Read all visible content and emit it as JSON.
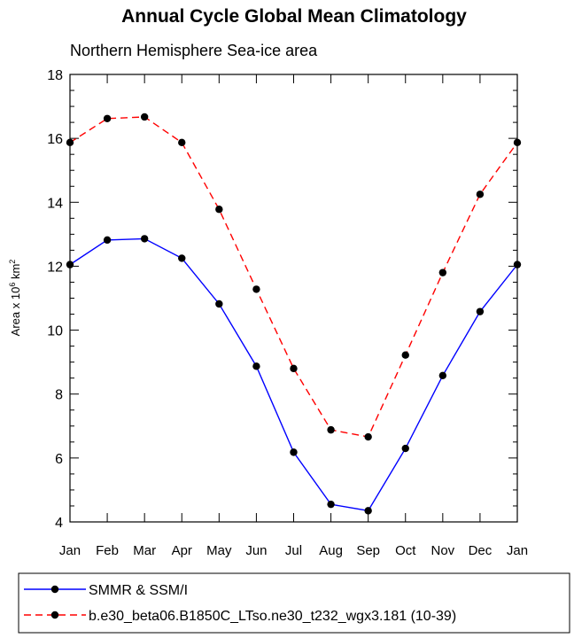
{
  "chart_data": {
    "type": "line",
    "title": "Annual Cycle Global Mean Climatology",
    "subtitle": "Northern Hemisphere Sea-ice area",
    "xlabel": "",
    "ylabel": {
      "prefix": "Area x 10",
      "exponent": "6",
      "unit_base": " km",
      "unit_exponent": "2"
    },
    "categories": [
      "Jan",
      "Feb",
      "Mar",
      "Apr",
      "May",
      "Jun",
      "Jul",
      "Aug",
      "Sep",
      "Oct",
      "Nov",
      "Dec",
      "Jan"
    ],
    "ylim": [
      4,
      18
    ],
    "yticks": [
      4,
      6,
      8,
      10,
      12,
      14,
      16,
      18
    ],
    "grid": false,
    "legend_placement": "bottom",
    "series": [
      {
        "name": "SMMR & SSM/I",
        "color": "#0000ff",
        "dash": "solid",
        "marker": "filled-circle",
        "values": [
          12.05,
          12.82,
          12.86,
          12.25,
          10.82,
          8.87,
          6.18,
          4.55,
          4.35,
          6.3,
          8.58,
          10.58,
          12.05
        ]
      },
      {
        "name": "b.e30_beta06.B1850C_LTso.ne30_t232_wgx3.181 (10-39)",
        "color": "#ff0000",
        "dash": "dashed",
        "marker": "filled-circle",
        "values": [
          15.87,
          16.62,
          16.67,
          15.87,
          13.78,
          11.28,
          8.8,
          6.88,
          6.66,
          9.22,
          11.8,
          14.25,
          15.87
        ]
      }
    ]
  }
}
